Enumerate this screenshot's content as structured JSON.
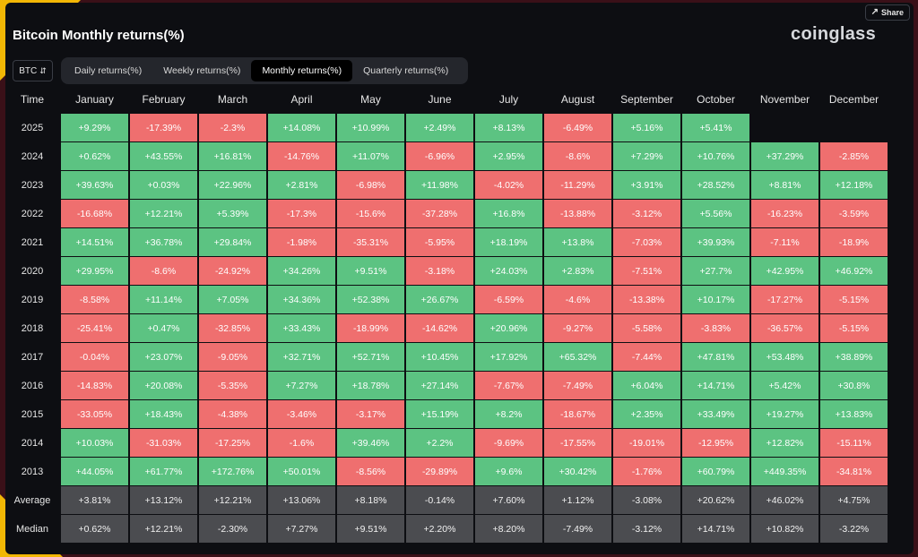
{
  "app": {
    "title": "Bitcoin Monthly returns(%)",
    "logo": "coinglass",
    "share_label": "Share"
  },
  "asset_select": {
    "value": "BTC"
  },
  "tabs": [
    {
      "label": "Daily returns(%)",
      "active": false
    },
    {
      "label": "Weekly returns(%)",
      "active": false
    },
    {
      "label": "Monthly returns(%)",
      "active": true
    },
    {
      "label": "Quarterly returns(%)",
      "active": false
    }
  ],
  "table": {
    "columns": [
      "Time",
      "January",
      "February",
      "March",
      "April",
      "May",
      "June",
      "July",
      "August",
      "September",
      "October",
      "November",
      "December"
    ],
    "rows": [
      {
        "year": "2025",
        "values": [
          "+9.29%",
          "-17.39%",
          "-2.3%",
          "+14.08%",
          "+10.99%",
          "+2.49%",
          "+8.13%",
          "-6.49%",
          "+5.16%",
          "+5.41%",
          "",
          ""
        ]
      },
      {
        "year": "2024",
        "values": [
          "+0.62%",
          "+43.55%",
          "+16.81%",
          "-14.76%",
          "+11.07%",
          "-6.96%",
          "+2.95%",
          "-8.6%",
          "+7.29%",
          "+10.76%",
          "+37.29%",
          "-2.85%"
        ]
      },
      {
        "year": "2023",
        "values": [
          "+39.63%",
          "+0.03%",
          "+22.96%",
          "+2.81%",
          "-6.98%",
          "+11.98%",
          "-4.02%",
          "-11.29%",
          "+3.91%",
          "+28.52%",
          "+8.81%",
          "+12.18%"
        ]
      },
      {
        "year": "2022",
        "values": [
          "-16.68%",
          "+12.21%",
          "+5.39%",
          "-17.3%",
          "-15.6%",
          "-37.28%",
          "+16.8%",
          "-13.88%",
          "-3.12%",
          "+5.56%",
          "-16.23%",
          "-3.59%"
        ]
      },
      {
        "year": "2021",
        "values": [
          "+14.51%",
          "+36.78%",
          "+29.84%",
          "-1.98%",
          "-35.31%",
          "-5.95%",
          "+18.19%",
          "+13.8%",
          "-7.03%",
          "+39.93%",
          "-7.11%",
          "-18.9%"
        ]
      },
      {
        "year": "2020",
        "values": [
          "+29.95%",
          "-8.6%",
          "-24.92%",
          "+34.26%",
          "+9.51%",
          "-3.18%",
          "+24.03%",
          "+2.83%",
          "-7.51%",
          "+27.7%",
          "+42.95%",
          "+46.92%"
        ]
      },
      {
        "year": "2019",
        "values": [
          "-8.58%",
          "+11.14%",
          "+7.05%",
          "+34.36%",
          "+52.38%",
          "+26.67%",
          "-6.59%",
          "-4.6%",
          "-13.38%",
          "+10.17%",
          "-17.27%",
          "-5.15%"
        ]
      },
      {
        "year": "2018",
        "values": [
          "-25.41%",
          "+0.47%",
          "-32.85%",
          "+33.43%",
          "-18.99%",
          "-14.62%",
          "+20.96%",
          "-9.27%",
          "-5.58%",
          "-3.83%",
          "-36.57%",
          "-5.15%"
        ]
      },
      {
        "year": "2017",
        "values": [
          "-0.04%",
          "+23.07%",
          "-9.05%",
          "+32.71%",
          "+52.71%",
          "+10.45%",
          "+17.92%",
          "+65.32%",
          "-7.44%",
          "+47.81%",
          "+53.48%",
          "+38.89%"
        ]
      },
      {
        "year": "2016",
        "values": [
          "-14.83%",
          "+20.08%",
          "-5.35%",
          "+7.27%",
          "+18.78%",
          "+27.14%",
          "-7.67%",
          "-7.49%",
          "+6.04%",
          "+14.71%",
          "+5.42%",
          "+30.8%"
        ]
      },
      {
        "year": "2015",
        "values": [
          "-33.05%",
          "+18.43%",
          "-4.38%",
          "-3.46%",
          "-3.17%",
          "+15.19%",
          "+8.2%",
          "-18.67%",
          "+2.35%",
          "+33.49%",
          "+19.27%",
          "+13.83%"
        ]
      },
      {
        "year": "2014",
        "values": [
          "+10.03%",
          "-31.03%",
          "-17.25%",
          "-1.6%",
          "+39.46%",
          "+2.2%",
          "-9.69%",
          "-17.55%",
          "-19.01%",
          "-12.95%",
          "+12.82%",
          "-15.11%"
        ]
      },
      {
        "year": "2013",
        "values": [
          "+44.05%",
          "+61.77%",
          "+172.76%",
          "+50.01%",
          "-8.56%",
          "-29.89%",
          "+9.6%",
          "+30.42%",
          "-1.76%",
          "+60.79%",
          "+449.35%",
          "-34.81%"
        ]
      }
    ],
    "summary": [
      {
        "label": "Average",
        "values": [
          "+3.81%",
          "+13.12%",
          "+12.21%",
          "+13.06%",
          "+8.18%",
          "-0.14%",
          "+7.60%",
          "+1.12%",
          "-3.08%",
          "+20.62%",
          "+46.02%",
          "+4.75%"
        ]
      },
      {
        "label": "Median",
        "values": [
          "+0.62%",
          "+12.21%",
          "-2.30%",
          "+7.27%",
          "+9.51%",
          "+2.20%",
          "+8.20%",
          "-7.49%",
          "-3.12%",
          "+14.71%",
          "+10.82%",
          "-3.22%"
        ]
      }
    ]
  },
  "colors": {
    "positive": "#5cc382",
    "negative": "#ef6f6f",
    "summary": "#4b4c50"
  },
  "icons": {
    "share": "share-icon",
    "select": "updown-chevron-icon"
  }
}
